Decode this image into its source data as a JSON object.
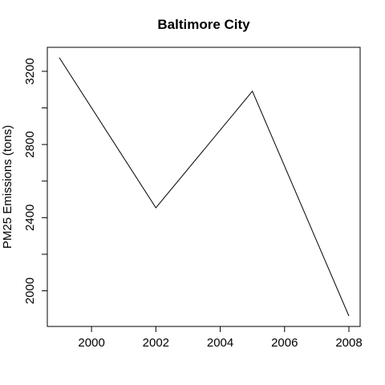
{
  "chart_data": {
    "type": "line",
    "title": "Baltimore City",
    "xlabel": "",
    "ylabel": "PM25 Emissions (tons)",
    "x": [
      1999,
      2002,
      2005,
      2008
    ],
    "series": [
      {
        "values": [
          3274.18,
          2453.916,
          3091.354,
          1862.282
        ]
      }
    ],
    "xticks": [
      2000,
      2002,
      2004,
      2006,
      2008
    ],
    "xtick_labels": [
      "2000",
      "2002",
      "2004",
      "2006",
      "2008"
    ],
    "yticks": [
      2000,
      2200,
      2400,
      2600,
      2800,
      3000,
      3200
    ],
    "ytick_labels": [
      "2000",
      "",
      "2400",
      "",
      "2800",
      "",
      "3200"
    ],
    "grid": false,
    "legend": "none",
    "line_color": "#000000"
  }
}
